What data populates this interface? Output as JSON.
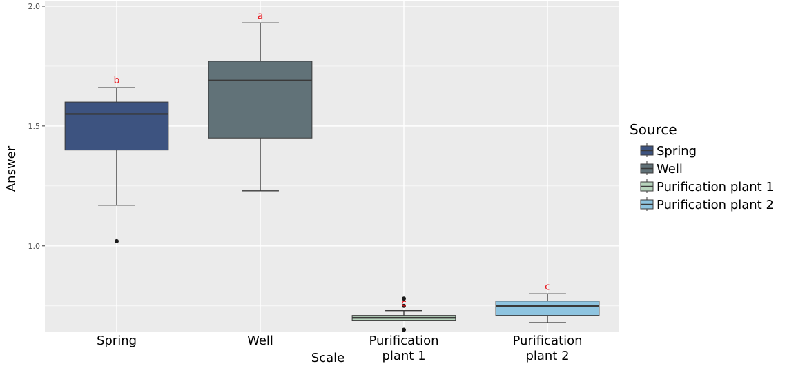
{
  "chart_data": {
    "type": "boxplot",
    "title": "",
    "xlabel": "Scale",
    "ylabel": "Answer",
    "ylim": [
      0.64,
      2.02
    ],
    "yticks": [
      1.0,
      1.5,
      2.0
    ],
    "ytick_labels": [
      "1.0",
      "1.5",
      "2.0"
    ],
    "grid": true,
    "legend": {
      "title": "Source",
      "placement": "right",
      "entries": [
        "Spring",
        "Well",
        "Purification plant 1",
        "Purification plant 2"
      ]
    },
    "categories": [
      [
        "Spring"
      ],
      [
        "Well"
      ],
      [
        "Purification",
        "plant 1"
      ],
      [
        "Purification",
        "plant 2"
      ]
    ],
    "series": [
      {
        "name": "Spring",
        "color": "#3d5380",
        "whisker_low": 1.17,
        "q1": 1.4,
        "median": 1.55,
        "q3": 1.6,
        "whisker_high": 1.66,
        "outliers": [
          1.02
        ],
        "letter": "b"
      },
      {
        "name": "Well",
        "color": "#617278",
        "whisker_low": 1.23,
        "q1": 1.45,
        "median": 1.69,
        "q3": 1.77,
        "whisker_high": 1.93,
        "outliers": [],
        "letter": "a"
      },
      {
        "name": "Purification plant 1",
        "color": "#b7d4bc",
        "whisker_low": 0.69,
        "q1": 0.69,
        "median": 0.7,
        "q3": 0.71,
        "whisker_high": 0.73,
        "outliers": [
          0.65,
          0.75,
          0.78
        ],
        "letter": "c"
      },
      {
        "name": "Purification plant 2",
        "color": "#8ec4e0",
        "whisker_low": 0.68,
        "q1": 0.71,
        "median": 0.75,
        "q3": 0.77,
        "whisker_high": 0.8,
        "outliers": [],
        "letter": "c"
      }
    ],
    "colors": {
      "panel_background": "#ebebeb",
      "grid_line": "#ffffff",
      "letters": "#e8141b",
      "box_outline": "#3a3a3a"
    }
  }
}
